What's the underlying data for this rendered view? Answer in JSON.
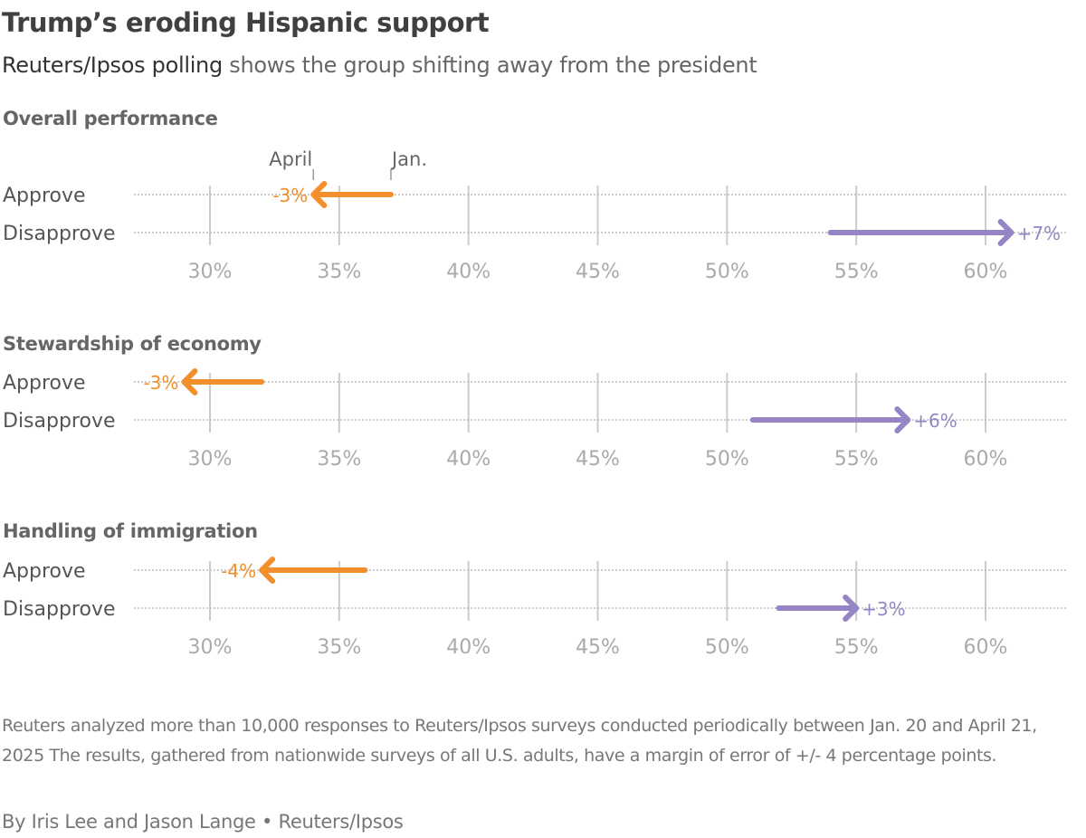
{
  "title": "Trump’s eroding Hispanic support",
  "subtitle_highlight": "Reuters/Ipsos polling",
  "subtitle_rest": " shows the group shifting away from the president",
  "colors": {
    "approve": "#f28e2b",
    "disapprove": "#9585c4",
    "grid": "#cccccc",
    "dotted": "#bbbbbb"
  },
  "chart_data": {
    "type": "arrow-dot",
    "x_ticks": [
      30,
      35,
      40,
      45,
      50,
      55,
      60
    ],
    "x_tick_labels": [
      "30%",
      "35%",
      "40%",
      "45%",
      "50%",
      "55%",
      "60%"
    ],
    "xlim": [
      27,
      63
    ],
    "legend_annotations": {
      "start": "Jan.",
      "end": "April"
    },
    "panels": [
      {
        "title": "Overall performance",
        "rows": [
          {
            "label": "Approve",
            "jan": 37,
            "april": 34,
            "change": "-3%"
          },
          {
            "label": "Disapprove",
            "jan": 54,
            "april": 61,
            "change": "+7%"
          }
        ]
      },
      {
        "title": "Stewardship of economy",
        "rows": [
          {
            "label": "Approve",
            "jan": 32,
            "april": 29,
            "change": "-3%"
          },
          {
            "label": "Disapprove",
            "jan": 51,
            "april": 57,
            "change": "+6%"
          }
        ]
      },
      {
        "title": "Handling of immigration",
        "rows": [
          {
            "label": "Approve",
            "jan": 36,
            "april": 32,
            "change": "-4%"
          },
          {
            "label": "Disapprove",
            "jan": 52,
            "april": 55,
            "change": "+3%"
          }
        ]
      }
    ]
  },
  "note": "Reuters analyzed more than 10,000 responses to Reuters/Ipsos surveys conducted periodically between Jan. 20 and April 21, 2025 The results, gathered from nationwide surveys of all U.S. adults, have a margin of error of +/- 4 percentage points.",
  "byline": "By Iris Lee and Jason Lange • Reuters/Ipsos"
}
